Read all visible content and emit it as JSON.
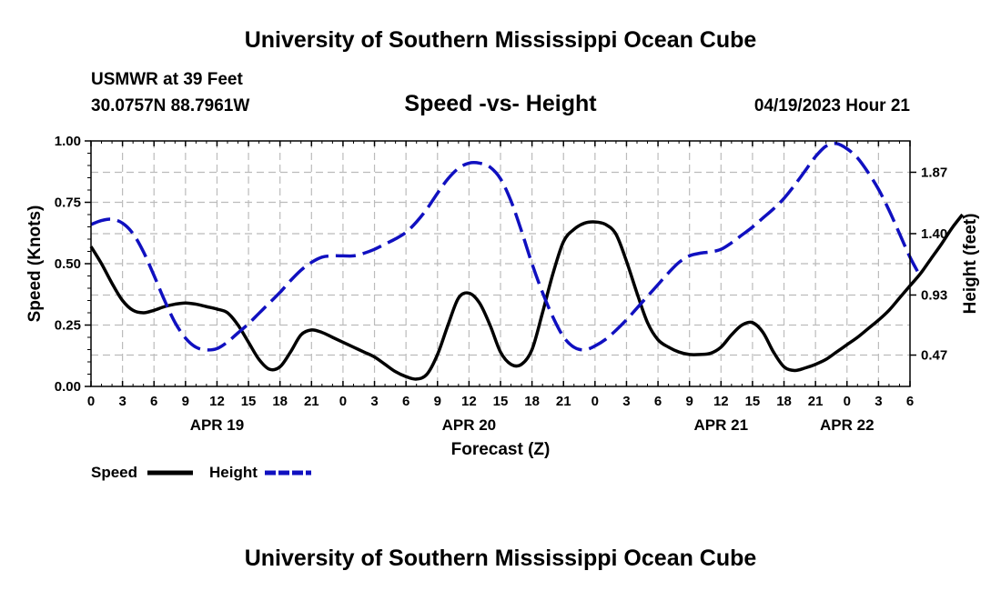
{
  "page": {
    "top_title": "University of Southern Mississippi Ocean Cube",
    "bottom_title": "University of Southern Mississippi Ocean Cube"
  },
  "header": {
    "station": "USMWR at 39 Feet",
    "coords": "30.0757N  88.7961W",
    "chart_title": "Speed -vs- Height",
    "run_time": "04/19/2023 Hour 21"
  },
  "legend": {
    "speed_label": "Speed",
    "height_label": "Height"
  },
  "colors": {
    "speed": "#000000",
    "height": "#1010c0",
    "grid": "#bbbbbb"
  },
  "chart_data": {
    "type": "line",
    "title": "Speed -vs- Height",
    "xlabel": "Forecast (Z)",
    "ylabel": "Speed (Knots)",
    "y2label": "Height (feet)",
    "x_range_hours": [
      0,
      78
    ],
    "ylim": [
      0,
      1
    ],
    "y2lim": [
      0.23,
      2.11
    ],
    "y_ticks": [
      "0.00",
      "0.25",
      "0.50",
      "0.75",
      "1.00"
    ],
    "y2_ticks": [
      "0.47",
      "0.93",
      "1.40",
      "1.87"
    ],
    "x_tick_labels": [
      "0",
      "3",
      "6",
      "9",
      "12",
      "15",
      "18",
      "21",
      "0",
      "3",
      "6",
      "9",
      "12",
      "15",
      "18",
      "21",
      "0",
      "3",
      "6",
      "9",
      "12",
      "15",
      "18",
      "21",
      "0",
      "3",
      "6"
    ],
    "date_labels": [
      {
        "label": "APR 19",
        "hour": 12
      },
      {
        "label": "APR 20",
        "hour": 36
      },
      {
        "label": "APR 21",
        "hour": 60
      },
      {
        "label": "APR 22",
        "hour": 72
      }
    ],
    "grid": true,
    "series": [
      {
        "name": "Speed",
        "axis": "left",
        "style": "solid",
        "points": [
          [
            0,
            0.57
          ],
          [
            1,
            0.5
          ],
          [
            2,
            0.42
          ],
          [
            3,
            0.35
          ],
          [
            4,
            0.31
          ],
          [
            5,
            0.3
          ],
          [
            6,
            0.31
          ],
          [
            7,
            0.325
          ],
          [
            8,
            0.335
          ],
          [
            9,
            0.34
          ],
          [
            10,
            0.335
          ],
          [
            11,
            0.325
          ],
          [
            12,
            0.315
          ],
          [
            13,
            0.3
          ],
          [
            14,
            0.25
          ],
          [
            15,
            0.18
          ],
          [
            16,
            0.11
          ],
          [
            17,
            0.07
          ],
          [
            18,
            0.08
          ],
          [
            19,
            0.14
          ],
          [
            20,
            0.21
          ],
          [
            21,
            0.23
          ],
          [
            22,
            0.22
          ],
          [
            23,
            0.2
          ],
          [
            24,
            0.18
          ],
          [
            25,
            0.16
          ],
          [
            26,
            0.14
          ],
          [
            27,
            0.12
          ],
          [
            28,
            0.09
          ],
          [
            29,
            0.06
          ],
          [
            30,
            0.04
          ],
          [
            31,
            0.03
          ],
          [
            32,
            0.05
          ],
          [
            33,
            0.13
          ],
          [
            34,
            0.25
          ],
          [
            35,
            0.36
          ],
          [
            36,
            0.38
          ],
          [
            37,
            0.34
          ],
          [
            38,
            0.25
          ],
          [
            39,
            0.14
          ],
          [
            40,
            0.09
          ],
          [
            41,
            0.09
          ],
          [
            42,
            0.15
          ],
          [
            43,
            0.3
          ],
          [
            44,
            0.46
          ],
          [
            45,
            0.59
          ],
          [
            46,
            0.64
          ],
          [
            47,
            0.665
          ],
          [
            48,
            0.67
          ],
          [
            49,
            0.66
          ],
          [
            50,
            0.62
          ],
          [
            51,
            0.51
          ],
          [
            52,
            0.38
          ],
          [
            53,
            0.26
          ],
          [
            54,
            0.19
          ],
          [
            55,
            0.16
          ],
          [
            56,
            0.14
          ],
          [
            57,
            0.13
          ],
          [
            58,
            0.13
          ],
          [
            59,
            0.135
          ],
          [
            60,
            0.16
          ],
          [
            61,
            0.21
          ],
          [
            62,
            0.25
          ],
          [
            63,
            0.26
          ],
          [
            64,
            0.22
          ],
          [
            65,
            0.14
          ],
          [
            66,
            0.08
          ],
          [
            67,
            0.065
          ],
          [
            68,
            0.075
          ],
          [
            69,
            0.09
          ],
          [
            70,
            0.11
          ],
          [
            71,
            0.14
          ],
          [
            72,
            0.17
          ],
          [
            73,
            0.2
          ],
          [
            74,
            0.235
          ],
          [
            75,
            0.27
          ],
          [
            76,
            0.31
          ],
          [
            77,
            0.36
          ],
          [
            78,
            0.41
          ],
          [
            79,
            0.46
          ],
          [
            80,
            0.52
          ],
          [
            81,
            0.58
          ],
          [
            82,
            0.645
          ],
          [
            83,
            0.7
          ]
        ]
      },
      {
        "name": "Height",
        "axis": "right",
        "style": "dashed",
        "points": [
          [
            0,
            1.47
          ],
          [
            1,
            1.5
          ],
          [
            2,
            1.51
          ],
          [
            3,
            1.48
          ],
          [
            4,
            1.4
          ],
          [
            5,
            1.26
          ],
          [
            6,
            1.08
          ],
          [
            7,
            0.89
          ],
          [
            8,
            0.72
          ],
          [
            9,
            0.6
          ],
          [
            10,
            0.53
          ],
          [
            11,
            0.51
          ],
          [
            12,
            0.52
          ],
          [
            13,
            0.57
          ],
          [
            14,
            0.64
          ],
          [
            15,
            0.71
          ],
          [
            16,
            0.79
          ],
          [
            17,
            0.87
          ],
          [
            18,
            0.95
          ],
          [
            19,
            1.04
          ],
          [
            20,
            1.12
          ],
          [
            21,
            1.18
          ],
          [
            22,
            1.22
          ],
          [
            23,
            1.23
          ],
          [
            24,
            1.23
          ],
          [
            25,
            1.23
          ],
          [
            26,
            1.25
          ],
          [
            27,
            1.28
          ],
          [
            28,
            1.32
          ],
          [
            29,
            1.36
          ],
          [
            30,
            1.41
          ],
          [
            31,
            1.49
          ],
          [
            32,
            1.59
          ],
          [
            33,
            1.71
          ],
          [
            34,
            1.82
          ],
          [
            35,
            1.9
          ],
          [
            36,
            1.94
          ],
          [
            37,
            1.94
          ],
          [
            38,
            1.91
          ],
          [
            39,
            1.82
          ],
          [
            40,
            1.65
          ],
          [
            41,
            1.42
          ],
          [
            42,
            1.17
          ],
          [
            43,
            0.95
          ],
          [
            44,
            0.76
          ],
          [
            45,
            0.61
          ],
          [
            46,
            0.53
          ],
          [
            47,
            0.51
          ],
          [
            48,
            0.54
          ],
          [
            49,
            0.59
          ],
          [
            50,
            0.66
          ],
          [
            51,
            0.74
          ],
          [
            52,
            0.83
          ],
          [
            53,
            0.92
          ],
          [
            54,
            1.01
          ],
          [
            55,
            1.1
          ],
          [
            56,
            1.18
          ],
          [
            57,
            1.23
          ],
          [
            58,
            1.25
          ],
          [
            59,
            1.26
          ],
          [
            60,
            1.28
          ],
          [
            61,
            1.33
          ],
          [
            62,
            1.39
          ],
          [
            63,
            1.45
          ],
          [
            64,
            1.52
          ],
          [
            65,
            1.59
          ],
          [
            66,
            1.67
          ],
          [
            67,
            1.77
          ],
          [
            68,
            1.88
          ],
          [
            69,
            1.99
          ],
          [
            70,
            2.07
          ],
          [
            71,
            2.09
          ],
          [
            72,
            2.05
          ],
          [
            73,
            1.98
          ],
          [
            74,
            1.87
          ],
          [
            75,
            1.74
          ],
          [
            76,
            1.58
          ],
          [
            77,
            1.4
          ],
          [
            78,
            1.22
          ],
          [
            79,
            1.07
          ]
        ]
      }
    ]
  }
}
